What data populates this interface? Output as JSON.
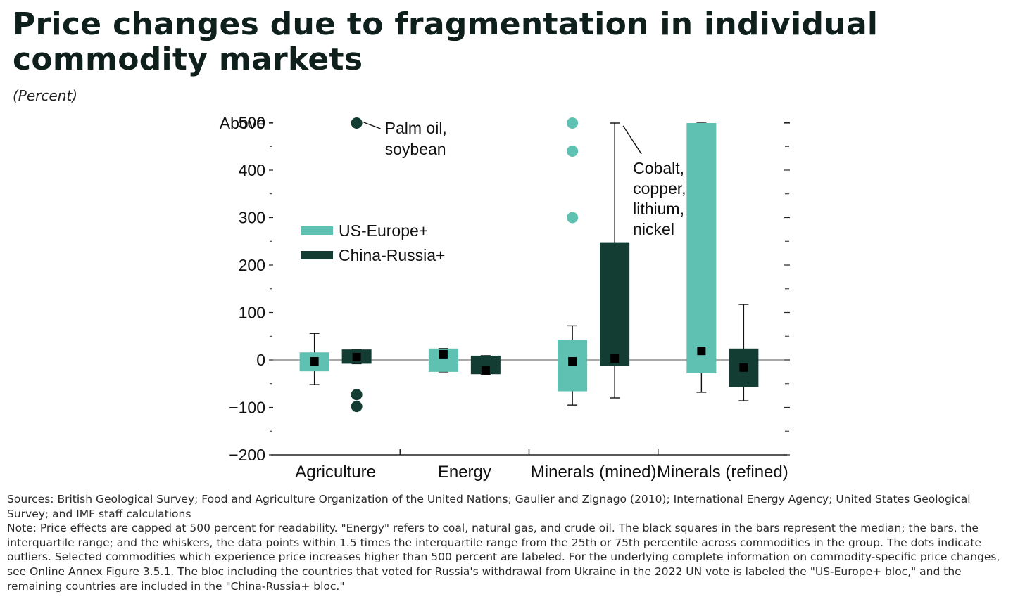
{
  "title": "Price changes due to fragmentation in individual commodity markets",
  "subtitle": "(Percent)",
  "chart_data": {
    "type": "box",
    "categories": [
      "Agriculture",
      "Energy",
      "Minerals (mined)",
      "Minerals (refined)"
    ],
    "y_ticks": [
      -200,
      -100,
      0,
      100,
      200,
      300,
      400,
      500
    ],
    "y_top_label": "Above",
    "ylim": [
      -200,
      500
    ],
    "series": [
      {
        "name": "US-Europe+",
        "color": "#5ec1b1",
        "boxes": [
          {
            "category": "Agriculture",
            "whisker_low": -52,
            "q1": -24,
            "median": -3,
            "q3": 16,
            "whisker_high": 56,
            "outliers": []
          },
          {
            "category": "Energy",
            "whisker_low": -25,
            "q1": -25,
            "median": 12,
            "q3": 24,
            "whisker_high": 24,
            "outliers": []
          },
          {
            "category": "Minerals (mined)",
            "whisker_low": -95,
            "q1": -66,
            "median": -3,
            "q3": 43,
            "whisker_high": 72,
            "outliers": [
              300,
              440,
              "Above"
            ]
          },
          {
            "category": "Minerals (refined)",
            "whisker_low": -68,
            "q1": -28,
            "median": 19,
            "q3": "Above",
            "whisker_high": "Above",
            "outliers": []
          }
        ]
      },
      {
        "name": "China-Russia+",
        "color": "#133d33",
        "boxes": [
          {
            "category": "Agriculture",
            "whisker_low": -8,
            "q1": -8,
            "median": 6,
            "q3": 22,
            "whisker_high": 22,
            "outliers": [
              -73,
              -98,
              "Above"
            ]
          },
          {
            "category": "Energy",
            "whisker_low": -30,
            "q1": -30,
            "median": -22,
            "q3": 9,
            "whisker_high": 9,
            "outliers": []
          },
          {
            "category": "Minerals (mined)",
            "whisker_low": -80,
            "q1": -12,
            "median": 3,
            "q3": 248,
            "whisker_high": "Above",
            "outliers": []
          },
          {
            "category": "Minerals (refined)",
            "whisker_low": -86,
            "q1": -57,
            "median": -16,
            "q3": 24,
            "whisker_high": 117,
            "outliers": []
          }
        ]
      }
    ],
    "annotations": [
      {
        "category": "Agriculture",
        "lines": [
          "Palm oil,",
          "soybean"
        ]
      },
      {
        "category": "Minerals (mined)",
        "lines": [
          "Cobalt,",
          "copper,",
          "lithium,",
          "nickel"
        ]
      }
    ],
    "legend": "left, upper-middle of plot"
  },
  "notes": {
    "sources": "Sources: British Geological Survey; Food and Agriculture Organization of the United Nations; Gaulier and Zignago (2010); International Energy Agency; United States Geological Survey; and IMF staff calculations",
    "note": "Note: Price effects are capped at 500 percent for readability. \"Energy\" refers to coal, natural gas, and crude oil. The black squares in the bars represent the median; the bars, the interquartile range; and the whiskers, the data points within 1.5 times the interquartile range from the 25th or 75th percentile across commodities in the group. The dots indicate outliers. Selected commodities which experience price increases higher than 500 percent are labeled. For the underlying complete information on commodity-specific price changes, see Online Annex Figure 3.5.1. The bloc including the countries that voted for Russia's withdrawal from Ukraine in the 2022 UN vote is labeled the \"US-Europe+ bloc,\" and the remaining countries are included in the \"China-Russia+ bloc.\""
  }
}
